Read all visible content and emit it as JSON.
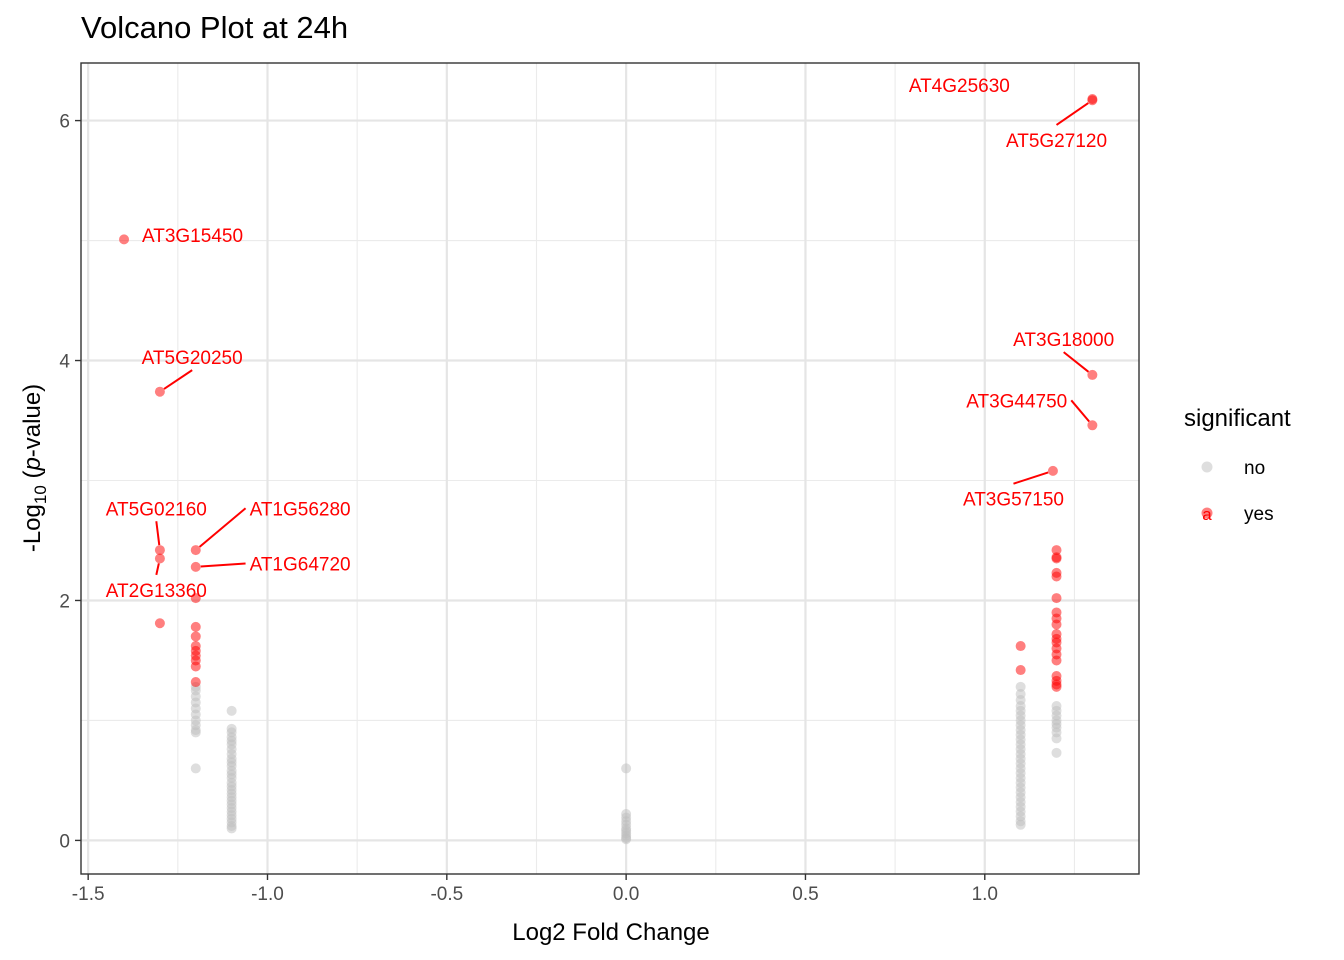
{
  "chart_data": {
    "type": "scatter",
    "title": "Volcano Plot at 24h",
    "xlabel": "Log2 Fold Change",
    "ylabel": {
      "prefix": "-Log",
      "sub": "10",
      "open": " (",
      "italic": "p",
      "rest": "-value)"
    },
    "xlim": [
      -1.52,
      1.43
    ],
    "ylim": [
      -0.28,
      6.48
    ],
    "x_ticks": [
      -1.5,
      -1.0,
      -0.5,
      0.0,
      0.5,
      1.0
    ],
    "x_tick_labels": [
      "-1.5",
      "-1.0",
      "-0.5",
      "0.0",
      "0.5",
      "1.0"
    ],
    "y_ticks": [
      0,
      2,
      4,
      6
    ],
    "y_tick_labels": [
      "0",
      "2",
      "4",
      "6"
    ],
    "grid": true,
    "legend": {
      "title": "significant",
      "position": "right",
      "entries": [
        {
          "key": "no",
          "label": "no",
          "color": "#bebebe"
        },
        {
          "key": "yes",
          "label": "yes",
          "color": "#ff0000"
        }
      ]
    },
    "series": [
      {
        "key": "no",
        "color": "#bebebe",
        "points": [
          [
            -1.2,
            1.28
          ],
          [
            -1.2,
            1.25
          ],
          [
            -1.2,
            1.2
          ],
          [
            -1.2,
            1.15
          ],
          [
            -1.2,
            1.1
          ],
          [
            -1.2,
            1.05
          ],
          [
            -1.2,
            1.0
          ],
          [
            -1.2,
            0.96
          ],
          [
            -1.2,
            0.92
          ],
          [
            -1.2,
            0.9
          ],
          [
            -1.2,
            0.6
          ],
          [
            -1.1,
            1.08
          ],
          [
            -1.1,
            0.93
          ],
          [
            -1.1,
            0.9
          ],
          [
            -1.1,
            0.86
          ],
          [
            -1.1,
            0.83
          ],
          [
            -1.1,
            0.8
          ],
          [
            -1.1,
            0.76
          ],
          [
            -1.1,
            0.72
          ],
          [
            -1.1,
            0.68
          ],
          [
            -1.1,
            0.65
          ],
          [
            -1.1,
            0.62
          ],
          [
            -1.1,
            0.58
          ],
          [
            -1.1,
            0.55
          ],
          [
            -1.1,
            0.52
          ],
          [
            -1.1,
            0.48
          ],
          [
            -1.1,
            0.45
          ],
          [
            -1.1,
            0.42
          ],
          [
            -1.1,
            0.39
          ],
          [
            -1.1,
            0.36
          ],
          [
            -1.1,
            0.33
          ],
          [
            -1.1,
            0.3
          ],
          [
            -1.1,
            0.27
          ],
          [
            -1.1,
            0.24
          ],
          [
            -1.1,
            0.21
          ],
          [
            -1.1,
            0.18
          ],
          [
            -1.1,
            0.15
          ],
          [
            -1.1,
            0.12
          ],
          [
            -1.1,
            0.1
          ],
          [
            0.0,
            0.6
          ],
          [
            0.0,
            0.22
          ],
          [
            0.0,
            0.19
          ],
          [
            0.0,
            0.16
          ],
          [
            0.0,
            0.13
          ],
          [
            0.0,
            0.1
          ],
          [
            0.0,
            0.08
          ],
          [
            0.0,
            0.06
          ],
          [
            0.0,
            0.04
          ],
          [
            0.0,
            0.02
          ],
          [
            0.0,
            0.01
          ],
          [
            1.1,
            1.28
          ],
          [
            1.1,
            1.22
          ],
          [
            1.1,
            1.17
          ],
          [
            1.1,
            1.12
          ],
          [
            1.1,
            1.08
          ],
          [
            1.1,
            1.04
          ],
          [
            1.1,
            1.0
          ],
          [
            1.1,
            0.96
          ],
          [
            1.1,
            0.92
          ],
          [
            1.1,
            0.88
          ],
          [
            1.1,
            0.84
          ],
          [
            1.1,
            0.8
          ],
          [
            1.1,
            0.76
          ],
          [
            1.1,
            0.72
          ],
          [
            1.1,
            0.68
          ],
          [
            1.1,
            0.64
          ],
          [
            1.1,
            0.6
          ],
          [
            1.1,
            0.56
          ],
          [
            1.1,
            0.52
          ],
          [
            1.1,
            0.48
          ],
          [
            1.1,
            0.44
          ],
          [
            1.1,
            0.4
          ],
          [
            1.1,
            0.36
          ],
          [
            1.1,
            0.32
          ],
          [
            1.1,
            0.28
          ],
          [
            1.1,
            0.24
          ],
          [
            1.1,
            0.2
          ],
          [
            1.1,
            0.16
          ],
          [
            1.1,
            0.13
          ],
          [
            1.2,
            1.12
          ],
          [
            1.2,
            1.08
          ],
          [
            1.2,
            1.04
          ],
          [
            1.2,
            1.0
          ],
          [
            1.2,
            0.97
          ],
          [
            1.2,
            0.94
          ],
          [
            1.2,
            0.9
          ],
          [
            1.2,
            0.85
          ],
          [
            1.2,
            0.73
          ]
        ]
      },
      {
        "key": "yes",
        "color": "#ff0000",
        "points": [
          [
            -1.4,
            5.01
          ],
          [
            -1.3,
            3.74
          ],
          [
            -1.3,
            2.42
          ],
          [
            -1.3,
            2.35
          ],
          [
            -1.3,
            1.81
          ],
          [
            -1.2,
            2.42
          ],
          [
            -1.2,
            2.28
          ],
          [
            -1.2,
            2.02
          ],
          [
            -1.2,
            1.78
          ],
          [
            -1.2,
            1.7
          ],
          [
            -1.2,
            1.62
          ],
          [
            -1.2,
            1.58
          ],
          [
            -1.2,
            1.54
          ],
          [
            -1.2,
            1.5
          ],
          [
            -1.2,
            1.45
          ],
          [
            -1.2,
            1.32
          ],
          [
            1.3,
            6.18
          ],
          [
            1.3,
            6.17
          ],
          [
            1.3,
            3.88
          ],
          [
            1.3,
            3.46
          ],
          [
            1.19,
            3.08
          ],
          [
            1.1,
            1.62
          ],
          [
            1.1,
            1.42
          ],
          [
            1.2,
            2.42
          ],
          [
            1.2,
            2.36
          ],
          [
            1.2,
            2.35
          ],
          [
            1.2,
            2.23
          ],
          [
            1.2,
            2.2
          ],
          [
            1.2,
            2.02
          ],
          [
            1.2,
            1.9
          ],
          [
            1.2,
            1.85
          ],
          [
            1.2,
            1.8
          ],
          [
            1.2,
            1.72
          ],
          [
            1.2,
            1.68
          ],
          [
            1.2,
            1.65
          ],
          [
            1.2,
            1.6
          ],
          [
            1.2,
            1.55
          ],
          [
            1.2,
            1.5
          ],
          [
            1.2,
            1.37
          ],
          [
            1.2,
            1.33
          ],
          [
            1.2,
            1.3
          ],
          [
            1.2,
            1.28
          ]
        ]
      }
    ],
    "annotations": [
      {
        "text": "AT4G25630",
        "point": [
          1.3,
          6.18
        ],
        "label_at": [
          1.07,
          6.24
        ],
        "anchor": "end",
        "leader": false
      },
      {
        "text": "AT5G27120",
        "point": [
          1.3,
          6.17
        ],
        "label_at": [
          1.2,
          5.78
        ],
        "anchor": "middle",
        "leader": true
      },
      {
        "text": "AT3G15450",
        "point": [
          -1.4,
          5.01
        ],
        "label_at": [
          -1.35,
          4.99
        ],
        "anchor": "start",
        "leader": false
      },
      {
        "text": "AT5G20250",
        "point": [
          -1.3,
          3.74
        ],
        "label_at": [
          -1.21,
          3.97
        ],
        "anchor": "middle",
        "leader": true
      },
      {
        "text": "AT3G18000",
        "point": [
          1.3,
          3.88
        ],
        "label_at": [
          1.22,
          4.12
        ],
        "anchor": "middle",
        "leader": true
      },
      {
        "text": "AT3G44750",
        "point": [
          1.3,
          3.46
        ],
        "label_at": [
          1.23,
          3.61
        ],
        "anchor": "end",
        "leader": true
      },
      {
        "text": "AT3G57150",
        "point": [
          1.19,
          3.08
        ],
        "label_at": [
          1.08,
          2.79
        ],
        "anchor": "middle",
        "leader": true
      },
      {
        "text": "AT5G02160",
        "point": [
          -1.3,
          2.42
        ],
        "label_at": [
          -1.31,
          2.71
        ],
        "anchor": "middle",
        "leader": true
      },
      {
        "text": "AT1G56280",
        "point": [
          -1.2,
          2.42
        ],
        "label_at": [
          -1.05,
          2.71
        ],
        "anchor": "start",
        "leader": true
      },
      {
        "text": "AT1G64720",
        "point": [
          -1.2,
          2.28
        ],
        "label_at": [
          -1.05,
          2.25
        ],
        "anchor": "start",
        "leader": true
      },
      {
        "text": "AT2G13360",
        "point": [
          -1.3,
          2.35
        ],
        "label_at": [
          -1.31,
          2.03
        ],
        "anchor": "middle",
        "leader": true
      }
    ]
  }
}
